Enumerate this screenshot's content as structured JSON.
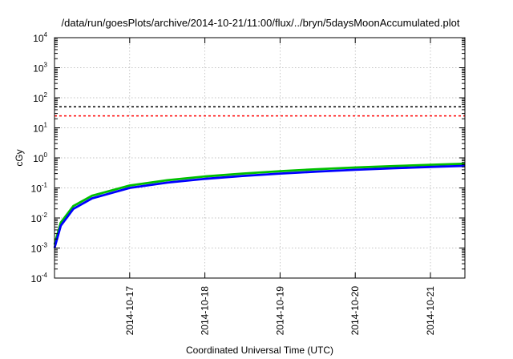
{
  "chart_data": {
    "type": "line",
    "title": "/data/run/goesPlots/archive/2014-10-21/11:00/flux/../bryn/5daysMoonAccumulated.plot",
    "xlabel": "Coordinated Universal Time (UTC)",
    "ylabel": "cGy",
    "y_scale": "log",
    "ylim": [
      0.0001,
      10000
    ],
    "x_range": [
      "2014-10-16T00:00",
      "2014-10-21T11:00"
    ],
    "x_ticks": [
      "2014-10-17",
      "2014-10-18",
      "2014-10-19",
      "2014-10-20",
      "2014-10-21"
    ],
    "y_ticks": [
      {
        "base": "10",
        "exp": "-4",
        "value": 0.0001
      },
      {
        "base": "10",
        "exp": "-3",
        "value": 0.001
      },
      {
        "base": "10",
        "exp": "-2",
        "value": 0.01
      },
      {
        "base": "10",
        "exp": "-1",
        "value": 0.1
      },
      {
        "base": "10",
        "exp": "0",
        "value": 1
      },
      {
        "base": "10",
        "exp": "1",
        "value": 10
      },
      {
        "base": "10",
        "exp": "2",
        "value": 100
      },
      {
        "base": "10",
        "exp": "3",
        "value": 1000
      },
      {
        "base": "10",
        "exp": "4",
        "value": 10000
      }
    ],
    "grid": true,
    "legend": "none",
    "reference_lines": [
      {
        "value": 50,
        "color": "#000000",
        "style": "dashed"
      },
      {
        "value": 25,
        "color": "#ff0000",
        "style": "dashed"
      }
    ],
    "series": [
      {
        "color": "#00c000",
        "x": [
          "2014-10-16T00:00",
          "2014-10-16T02:00",
          "2014-10-16T06:00",
          "2014-10-16T12:00",
          "2014-10-17T00:00",
          "2014-10-17T12:00",
          "2014-10-18T00:00",
          "2014-10-18T12:00",
          "2014-10-19T00:00",
          "2014-10-19T12:00",
          "2014-10-20T00:00",
          "2014-10-20T12:00",
          "2014-10-21T00:00",
          "2014-10-21T11:00"
        ],
        "values": [
          0.0013,
          0.007,
          0.025,
          0.055,
          0.12,
          0.18,
          0.24,
          0.3,
          0.36,
          0.42,
          0.48,
          0.53,
          0.59,
          0.64
        ]
      },
      {
        "color": "#0000ff",
        "x": [
          "2014-10-16T00:00",
          "2014-10-16T02:00",
          "2014-10-16T06:00",
          "2014-10-16T12:00",
          "2014-10-17T00:00",
          "2014-10-17T12:00",
          "2014-10-18T00:00",
          "2014-10-18T12:00",
          "2014-10-19T00:00",
          "2014-10-19T12:00",
          "2014-10-20T00:00",
          "2014-10-20T12:00",
          "2014-10-21T00:00",
          "2014-10-21T11:00"
        ],
        "values": [
          0.001,
          0.0055,
          0.02,
          0.045,
          0.1,
          0.15,
          0.2,
          0.25,
          0.3,
          0.35,
          0.4,
          0.45,
          0.5,
          0.54
        ]
      }
    ]
  }
}
